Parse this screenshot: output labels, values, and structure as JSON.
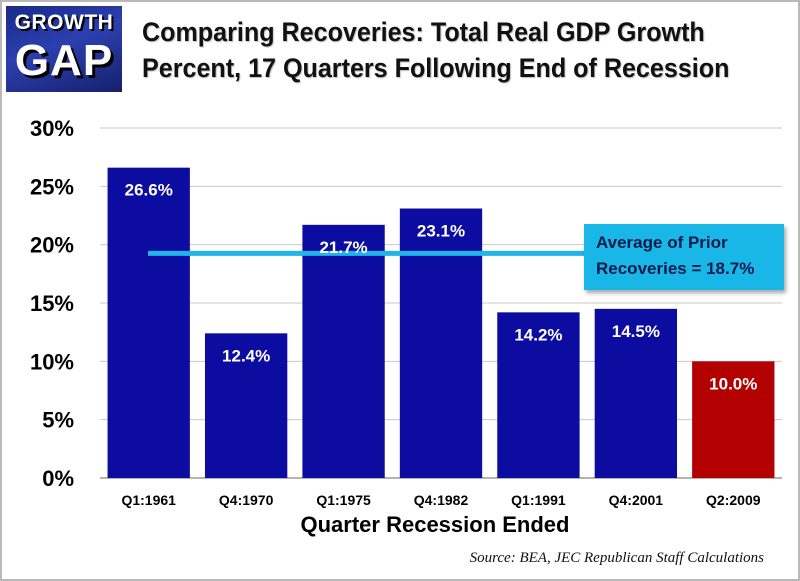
{
  "logo": {
    "line1": "GROWTH",
    "line2": "GAP"
  },
  "title": {
    "line1": "Comparing Recoveries:  Total Real GDP Growth",
    "line2": "Percent, 17 Quarters Following End of Recession"
  },
  "source": "Source:  BEA, JEC Republican Staff Calculations",
  "callout": {
    "line1": "Average of Prior",
    "line2": "Recoveries = 18.7%"
  },
  "colors": {
    "bar": "#0c0ca0",
    "highlight": "#b30000",
    "average_line": "#21b4e6",
    "callout": "#19b6e8"
  },
  "chart_data": {
    "type": "bar",
    "title": "Comparing Recoveries:  Total Real GDP Growth Percent, 17 Quarters Following End of Recession",
    "xlabel": "Quarter Recession Ended",
    "ylabel": "",
    "categories": [
      "Q1:1961",
      "Q4:1970",
      "Q1:1975",
      "Q4:1982",
      "Q1:1991",
      "Q4:2001",
      "Q2:2009"
    ],
    "values": [
      26.6,
      12.4,
      21.7,
      23.1,
      14.2,
      14.5,
      10.0
    ],
    "data_labels": [
      "26.6%",
      "12.4%",
      "21.7%",
      "23.1%",
      "14.2%",
      "14.5%",
      "10.0%"
    ],
    "highlight_category": "Q2:2009",
    "ylim": [
      0,
      30
    ],
    "yticks": [
      0,
      5,
      10,
      15,
      20,
      25,
      30
    ],
    "ytick_labels": [
      "0%",
      "5%",
      "10%",
      "15%",
      "20%",
      "25%",
      "30%"
    ],
    "average_line": {
      "value": 18.7,
      "label": "Average of Prior Recoveries = 18.7%"
    },
    "grid": true
  }
}
